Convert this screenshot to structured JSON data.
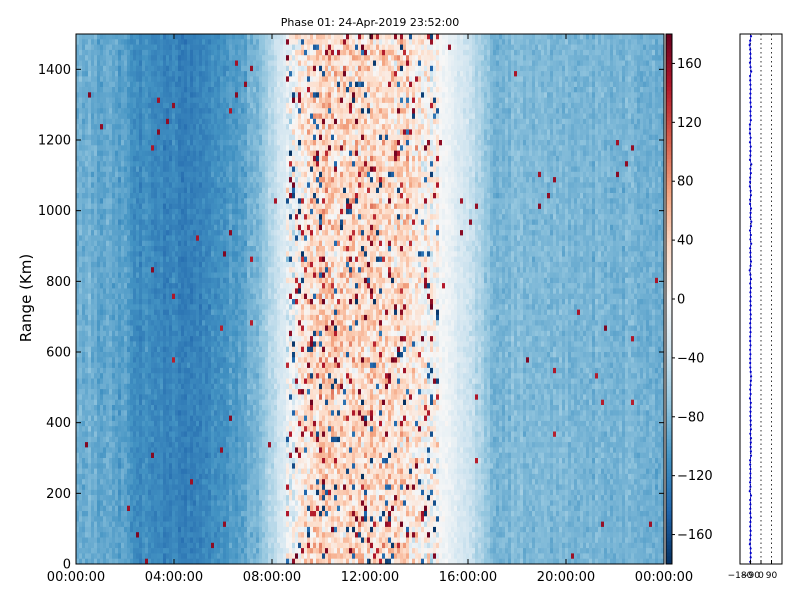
{
  "chart_data": [
    {
      "type": "heatmap",
      "title": "Phase 01: 24-Apr-2019 23:52:00",
      "ylabel": "Range (Km)",
      "xlabel": "",
      "x_ticks": [
        "00:00:00",
        "04:00:00",
        "08:00:00",
        "12:00:00",
        "16:00:00",
        "20:00:00",
        "00:00:00"
      ],
      "x_range_hours": [
        0,
        24
      ],
      "y_ticks": [
        0,
        200,
        400,
        600,
        800,
        1000,
        1200,
        1400
      ],
      "ylim": [
        0,
        1500
      ],
      "colorbar": {
        "colormap": "RdBu_r",
        "range": [
          -180,
          180
        ],
        "ticks": [
          -160,
          -120,
          -80,
          -40,
          0,
          40,
          80,
          120,
          160
        ],
        "colors": [
          "#053061",
          "#2166ac",
          "#4393c3",
          "#92c5de",
          "#d1e5f0",
          "#f7f7f7",
          "#fddbc7",
          "#f4a582",
          "#d6604d",
          "#b2182b",
          "#67001f"
        ]
      },
      "column_profile": {
        "hours": [
          0,
          1,
          2,
          2.3,
          3,
          4,
          4.5,
          5.5,
          6.5,
          7.3,
          7.8,
          8.5,
          9.2,
          10,
          12,
          13.5,
          14.2,
          15.2,
          15.8,
          16.5,
          17,
          18,
          20,
          22,
          24
        ],
        "phase_deg": [
          -88,
          -92,
          -98,
          -110,
          -115,
          -120,
          -125,
          -115,
          -100,
          -85,
          -60,
          -25,
          15,
          40,
          35,
          30,
          10,
          -10,
          -30,
          -55,
          -85,
          -80,
          -82,
          -85,
          -88
        ]
      }
    },
    {
      "type": "scatter",
      "x_tick_labels": [
        "−180",
        "−90",
        "0",
        "90"
      ],
      "xlim": [
        -180,
        180
      ],
      "ylim": [
        0,
        1500
      ],
      "grid_vlines": [
        -90,
        0,
        90
      ],
      "points_mean_deg": -90,
      "marker_color": "#0000cc"
    }
  ]
}
